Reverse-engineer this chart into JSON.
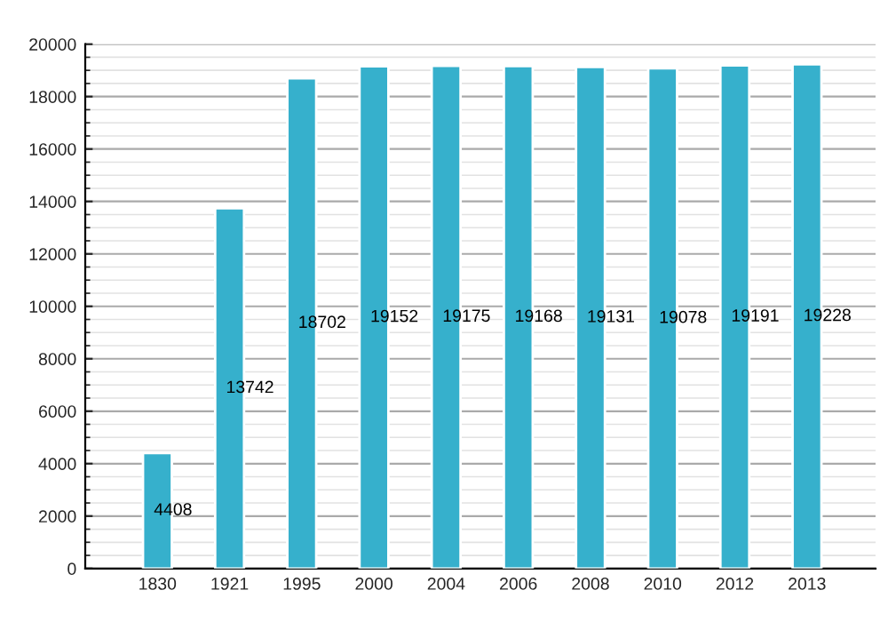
{
  "chart_data": {
    "type": "bar",
    "categories": [
      "1830",
      "1921",
      "1995",
      "2000",
      "2004",
      "2006",
      "2008",
      "2010",
      "2012",
      "2013"
    ],
    "values": [
      4408,
      13742,
      18702,
      19152,
      19175,
      19168,
      19131,
      19078,
      19191,
      19228
    ],
    "color": "#36b0cc",
    "ylim": [
      0,
      20000
    ],
    "yticks": [
      0,
      2000,
      4000,
      6000,
      8000,
      10000,
      12000,
      14000,
      16000,
      18000,
      20000
    ],
    "grid": "y",
    "data_labels": true
  }
}
